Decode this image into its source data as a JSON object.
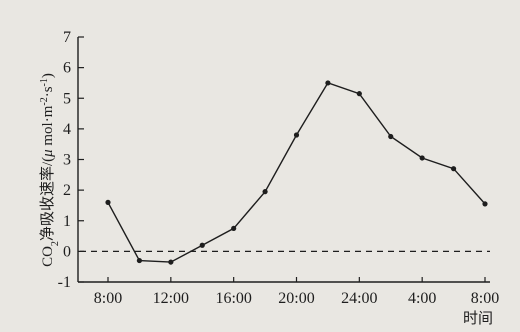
{
  "chart_data": {
    "type": "line",
    "ylabel": "CO2净吸收速率/(μmol·m⁻²·s⁻¹)",
    "ylabel_parts": {
      "prefix": "CO",
      "sub": "2",
      "middle": "净吸收速率/(",
      "mu": "μ",
      "unit_a": " mol·m",
      "sup_a": "-2",
      "unit_b": "·s",
      "sup_b": "-1",
      "suffix": ")"
    },
    "xlabel": "时间",
    "ylim": [
      -1,
      7
    ],
    "yticks": [
      "-1",
      "0",
      "1",
      "2",
      "3",
      "4",
      "5",
      "6",
      "7"
    ],
    "xticks": [
      "8:00",
      "12:00",
      "16:00",
      "20:00",
      "24:00",
      "4:00",
      "8:00"
    ],
    "x_hours": [
      8,
      10,
      12,
      14,
      16,
      18,
      20,
      22,
      24,
      26,
      28,
      30,
      32
    ],
    "series": [
      {
        "values": [
          1.6,
          -0.3,
          -0.35,
          0.2,
          0.75,
          1.95,
          3.8,
          5.5,
          5.15,
          3.75,
          3.05,
          2.7,
          1.55
        ]
      }
    ],
    "zero_line": {
      "y": 0,
      "style": "dashed"
    },
    "colors": {
      "line": "#1e1e1e",
      "background": "#e9e7e2"
    }
  }
}
